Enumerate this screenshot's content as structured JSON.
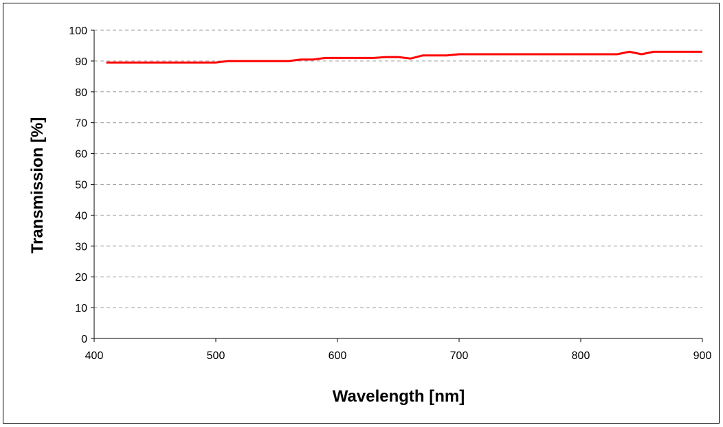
{
  "chart_data": {
    "type": "line",
    "title": "",
    "xlabel": "Wavelength [nm]",
    "ylabel": "Transmission [%]",
    "xlim": [
      400,
      900
    ],
    "ylim": [
      0,
      100
    ],
    "xticks": [
      400,
      500,
      600,
      700,
      800,
      900
    ],
    "yticks": [
      0,
      10,
      20,
      30,
      40,
      50,
      60,
      70,
      80,
      90,
      100
    ],
    "grid": "horizontal-dashed",
    "legend": "none",
    "series": [
      {
        "color": "#ff0000",
        "x": [
          410,
          420,
          430,
          440,
          450,
          460,
          470,
          480,
          490,
          500,
          510,
          520,
          530,
          540,
          550,
          560,
          570,
          580,
          590,
          600,
          610,
          620,
          630,
          640,
          650,
          660,
          670,
          680,
          690,
          700,
          710,
          720,
          730,
          740,
          750,
          760,
          770,
          780,
          790,
          800,
          810,
          820,
          830,
          840,
          850,
          860,
          870,
          880,
          890,
          900
        ],
        "y": [
          89.5,
          89.5,
          89.5,
          89.5,
          89.5,
          89.5,
          89.5,
          89.5,
          89.5,
          89.5,
          90.0,
          90.0,
          90.0,
          90.0,
          90.0,
          90.0,
          90.5,
          90.5,
          91.0,
          91.0,
          91.0,
          91.0,
          91.0,
          91.3,
          91.3,
          90.8,
          91.8,
          91.8,
          91.8,
          92.2,
          92.2,
          92.2,
          92.2,
          92.2,
          92.2,
          92.2,
          92.2,
          92.2,
          92.2,
          92.2,
          92.2,
          92.2,
          92.2,
          93.0,
          92.2,
          93.0,
          93.0,
          93.0,
          93.0,
          93.0
        ]
      }
    ]
  }
}
